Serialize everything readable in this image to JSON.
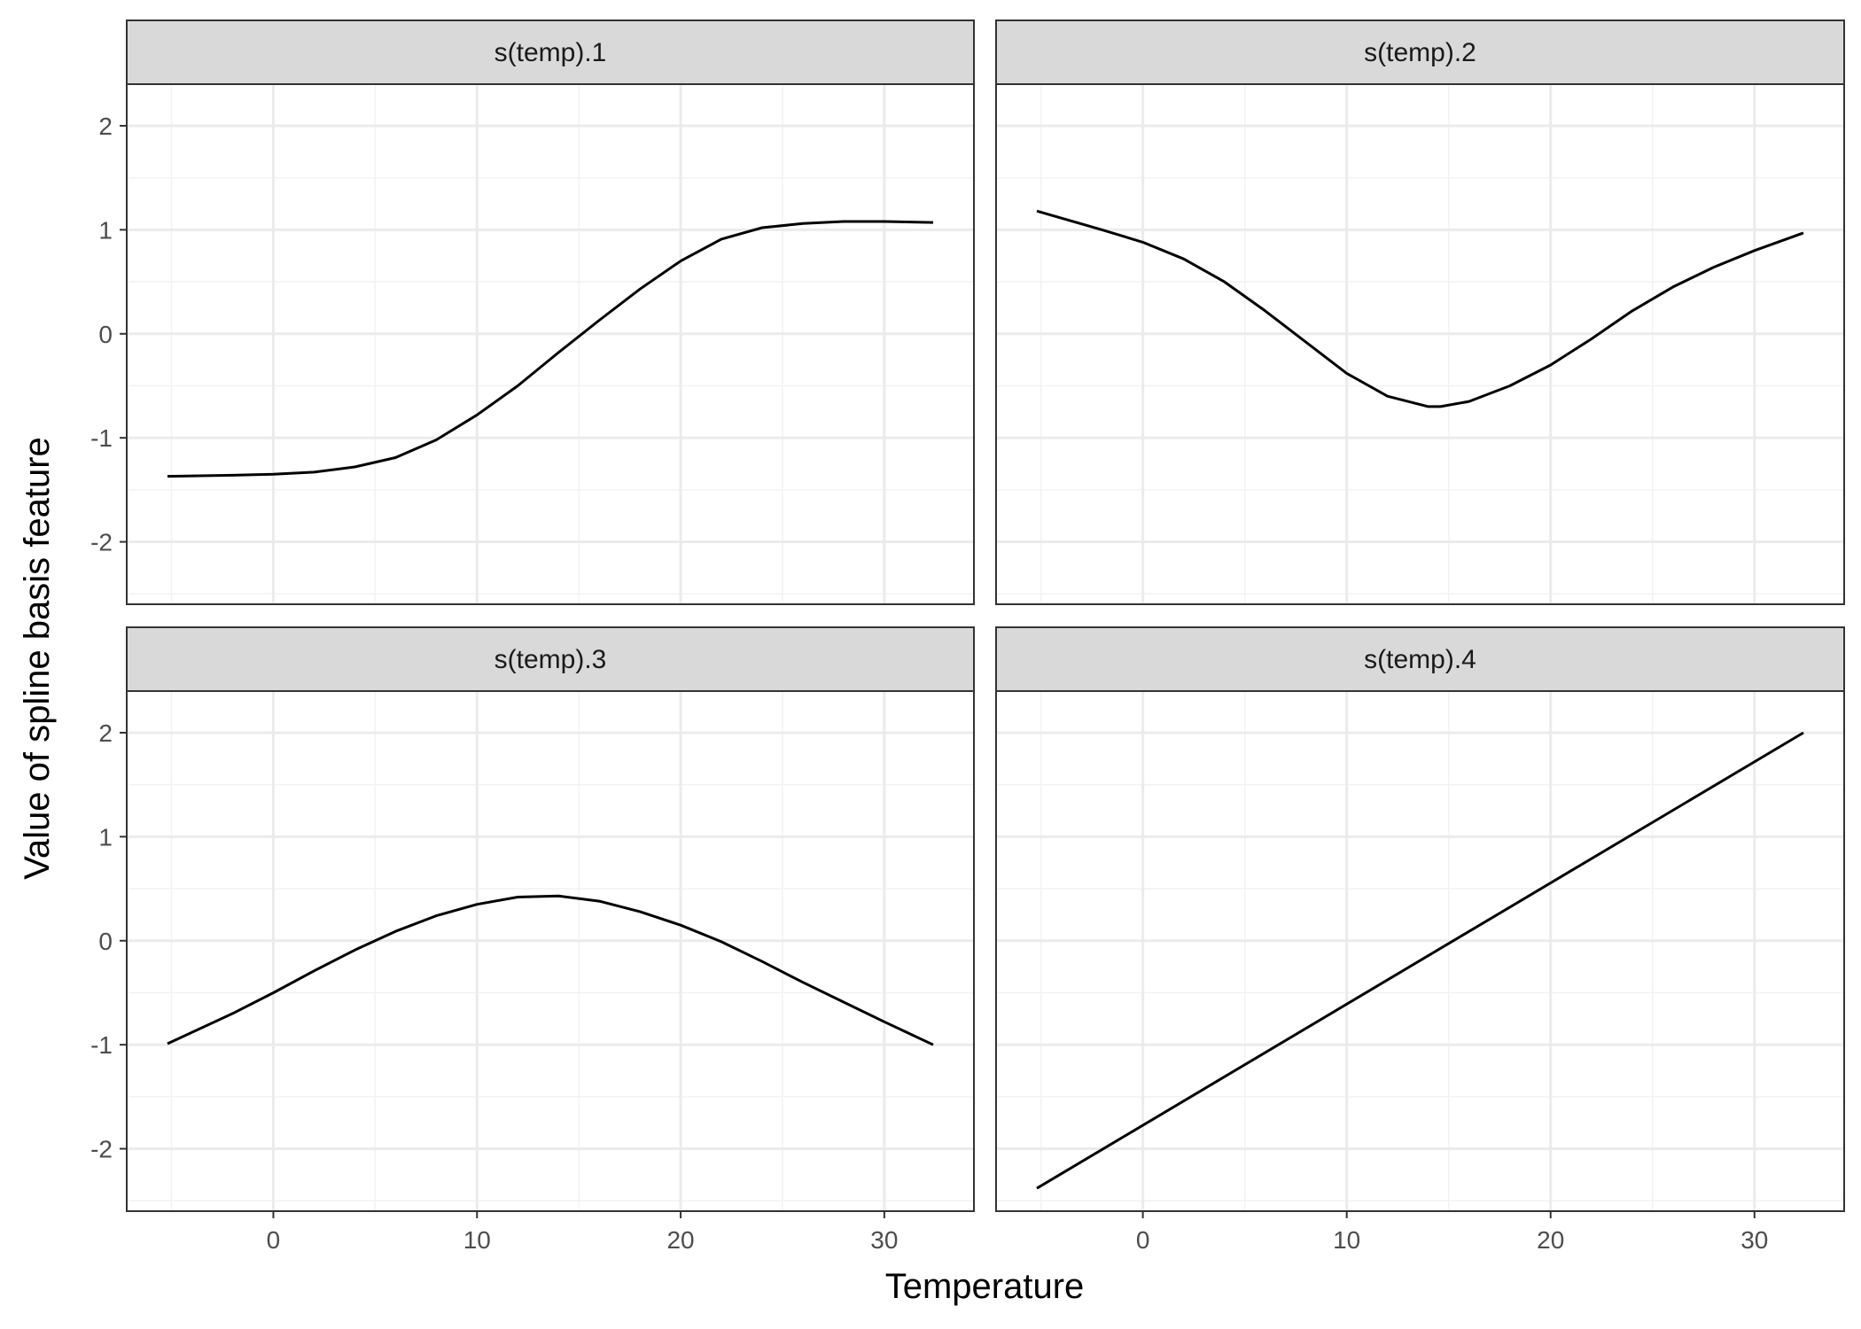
{
  "figure": {
    "xlabel": "Temperature",
    "ylabel": "Value of spline basis feature"
  },
  "chart_data": [
    {
      "type": "line",
      "panel": "s(temp).1",
      "xlim": [
        -7.2,
        34.4
      ],
      "ylim": [
        -2.6,
        2.4
      ],
      "x_ticks": [
        0,
        10,
        20,
        30
      ],
      "y_ticks": [
        -2,
        -1,
        0,
        1,
        2
      ],
      "grid": true,
      "series": [
        {
          "x": [
            -5.2,
            -2,
            0,
            2,
            4,
            6,
            8,
            10,
            12,
            14,
            16,
            18,
            20,
            22,
            24,
            26,
            28,
            30,
            32.4
          ],
          "y": [
            -1.37,
            -1.36,
            -1.35,
            -1.33,
            -1.28,
            -1.19,
            -1.02,
            -0.78,
            -0.5,
            -0.18,
            0.13,
            0.43,
            0.7,
            0.91,
            1.02,
            1.06,
            1.08,
            1.08,
            1.07
          ]
        }
      ]
    },
    {
      "type": "line",
      "panel": "s(temp).2",
      "xlim": [
        -7.2,
        34.4
      ],
      "ylim": [
        -2.6,
        2.4
      ],
      "x_ticks": [
        0,
        10,
        20,
        30
      ],
      "y_ticks": [
        -2,
        -1,
        0,
        1,
        2
      ],
      "grid": true,
      "series": [
        {
          "x": [
            -5.2,
            -2,
            0,
            2,
            4,
            6,
            8,
            10,
            12,
            14,
            14.6,
            16,
            18,
            20,
            22,
            24,
            26,
            28,
            30,
            32.4
          ],
          "y": [
            1.18,
            1.0,
            0.88,
            0.72,
            0.5,
            0.22,
            -0.08,
            -0.38,
            -0.6,
            -0.7,
            -0.7,
            -0.65,
            -0.5,
            -0.3,
            -0.05,
            0.22,
            0.45,
            0.64,
            0.8,
            0.97
          ]
        }
      ]
    },
    {
      "type": "line",
      "panel": "s(temp).3",
      "xlim": [
        -7.2,
        34.4
      ],
      "ylim": [
        -2.6,
        2.4
      ],
      "x_ticks": [
        0,
        10,
        20,
        30
      ],
      "y_ticks": [
        -2,
        -1,
        0,
        1,
        2
      ],
      "grid": true,
      "series": [
        {
          "x": [
            -5.2,
            -2,
            0,
            2,
            4,
            6,
            8,
            10,
            12,
            14,
            16,
            18,
            20,
            22,
            24,
            26,
            28,
            30,
            32.4
          ],
          "y": [
            -0.99,
            -0.7,
            -0.5,
            -0.29,
            -0.09,
            0.09,
            0.24,
            0.35,
            0.42,
            0.43,
            0.38,
            0.28,
            0.15,
            -0.01,
            -0.2,
            -0.4,
            -0.59,
            -0.78,
            -1.0
          ]
        }
      ]
    },
    {
      "type": "line",
      "panel": "s(temp).4",
      "xlim": [
        -7.2,
        34.4
      ],
      "ylim": [
        -2.6,
        2.4
      ],
      "x_ticks": [
        0,
        10,
        20,
        30
      ],
      "y_ticks": [
        -2,
        -1,
        0,
        1,
        2
      ],
      "grid": true,
      "series": [
        {
          "x": [
            -5.2,
            32.4
          ],
          "y": [
            -2.38,
            2.0
          ]
        }
      ]
    }
  ]
}
